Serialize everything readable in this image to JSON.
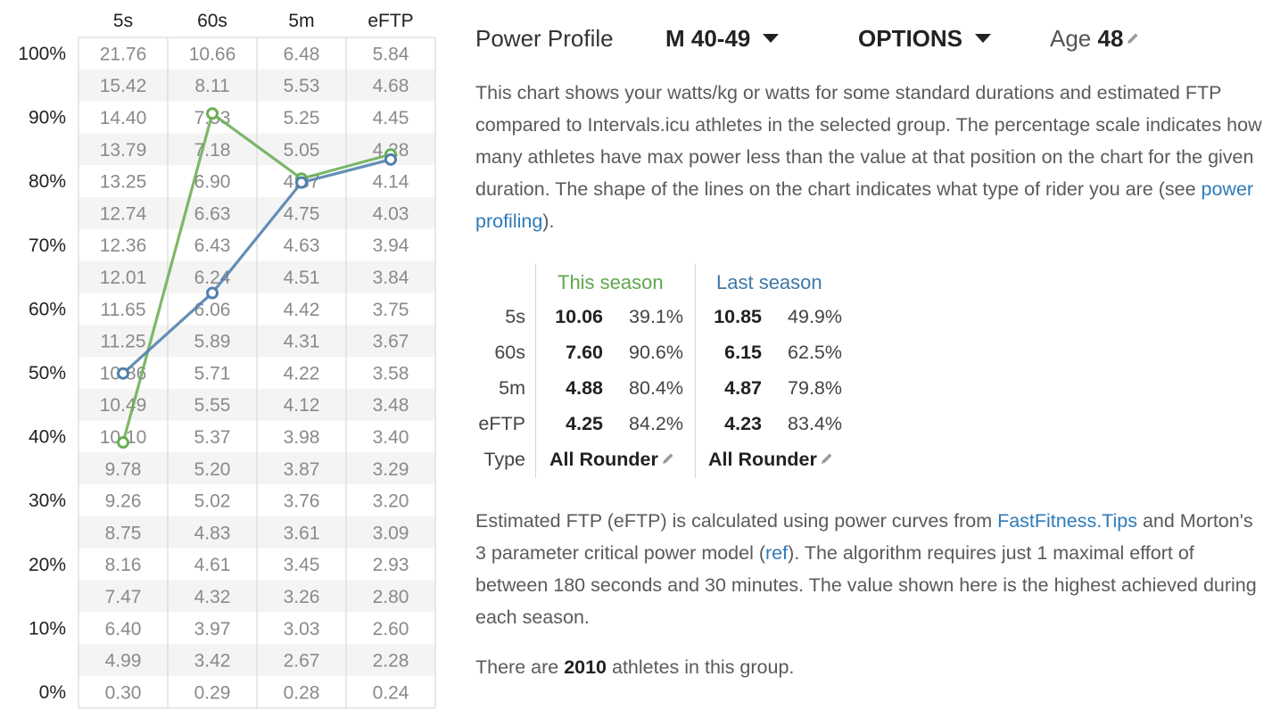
{
  "header": {
    "title": "Power Profile",
    "group": "M 40-49",
    "options": "OPTIONS",
    "age_label": "Age",
    "age_value": "48"
  },
  "description": {
    "part1": "This chart shows your watts/kg or watts for some standard durations and estimated FTP compared to Intervals.icu athletes in the selected group. The percentage scale indicates how many athletes have max power less than the value at that position on the chart for the given duration. The shape of the lines on the chart indicates what type of rider you are (see ",
    "link": "power profiling",
    "part2": ")."
  },
  "season_table": {
    "headers": {
      "this": "This season",
      "last": "Last season"
    },
    "rows": [
      {
        "label": "5s",
        "this_value": "10.06",
        "this_pct": "39.1%",
        "last_value": "10.85",
        "last_pct": "49.9%"
      },
      {
        "label": "60s",
        "this_value": "7.60",
        "this_pct": "90.6%",
        "last_value": "6.15",
        "last_pct": "62.5%"
      },
      {
        "label": "5m",
        "this_value": "4.88",
        "this_pct": "80.4%",
        "last_value": "4.87",
        "last_pct": "79.8%"
      },
      {
        "label": "eFTP",
        "this_value": "4.25",
        "this_pct": "84.2%",
        "last_value": "4.23",
        "last_pct": "83.4%"
      }
    ],
    "type_row": {
      "label": "Type",
      "this_type": "All Rounder",
      "last_type": "All Rounder"
    }
  },
  "eftp_note": {
    "part1": "Estimated FTP (eFTP) is calculated using power curves from ",
    "link1": "FastFitness.Tips",
    "part2": " and Morton's 3 parameter critical power model (",
    "link2": "ref",
    "part3": "). The algorithm requires just 1 maximal effort of between 180 seconds and 30 minutes. The value shown here is the highest achieved during each season."
  },
  "athletes_note": {
    "part1": "There are ",
    "count": "2010",
    "part2": " athletes in this group."
  },
  "colors": {
    "this_season": "#6aae55",
    "last_season": "#4f80ad",
    "row_stripe": "#f4f4f4",
    "grid": "#d9d9d9"
  },
  "chart_data": {
    "type": "line",
    "columns": [
      "5s",
      "60s",
      "5m",
      "eFTP"
    ],
    "percent_ticks": [
      "100%",
      "90%",
      "80%",
      "70%",
      "60%",
      "50%",
      "40%",
      "30%",
      "20%",
      "10%",
      "0%"
    ],
    "ylim": [
      0,
      100
    ],
    "table_rows": [
      [
        "21.76",
        "10.66",
        "6.48",
        "5.84"
      ],
      [
        "15.42",
        "8.11",
        "5.53",
        "4.68"
      ],
      [
        "14.40",
        "7.53",
        "5.25",
        "4.45"
      ],
      [
        "13.79",
        "7.18",
        "5.05",
        "4.28"
      ],
      [
        "13.25",
        "6.90",
        "4.87",
        "4.14"
      ],
      [
        "12.74",
        "6.63",
        "4.75",
        "4.03"
      ],
      [
        "12.36",
        "6.43",
        "4.63",
        "3.94"
      ],
      [
        "12.01",
        "6.24",
        "4.51",
        "3.84"
      ],
      [
        "11.65",
        "6.06",
        "4.42",
        "3.75"
      ],
      [
        "11.25",
        "5.89",
        "4.31",
        "3.67"
      ],
      [
        "10.86",
        "5.71",
        "4.22",
        "3.58"
      ],
      [
        "10.49",
        "5.55",
        "4.12",
        "3.48"
      ],
      [
        "10.10",
        "5.37",
        "3.98",
        "3.40"
      ],
      [
        "9.78",
        "5.20",
        "3.87",
        "3.29"
      ],
      [
        "9.26",
        "5.02",
        "3.76",
        "3.20"
      ],
      [
        "8.75",
        "4.83",
        "3.61",
        "3.09"
      ],
      [
        "8.16",
        "4.61",
        "3.45",
        "2.93"
      ],
      [
        "7.47",
        "4.32",
        "3.26",
        "2.80"
      ],
      [
        "6.40",
        "3.97",
        "3.03",
        "2.60"
      ],
      [
        "4.99",
        "3.42",
        "2.67",
        "2.28"
      ],
      [
        "0.30",
        "0.29",
        "0.28",
        "0.24"
      ]
    ],
    "series": [
      {
        "name": "This season",
        "key": "this_season",
        "values": [
          39.1,
          90.6,
          80.4,
          84.2
        ]
      },
      {
        "name": "Last season",
        "key": "last_season",
        "values": [
          49.9,
          62.5,
          79.8,
          83.4
        ]
      }
    ]
  }
}
